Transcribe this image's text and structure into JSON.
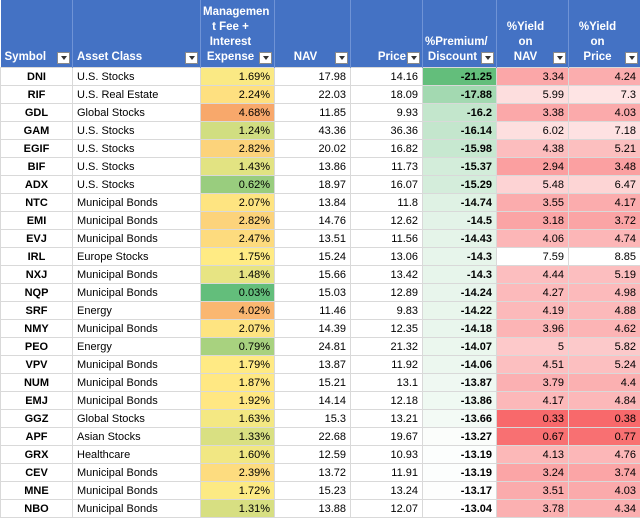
{
  "headers": [
    {
      "label": "Symbol",
      "align": "left"
    },
    {
      "label": "Asset Class",
      "align": "left"
    },
    {
      "label": "Managemen\nt Fee +\nInterest\nExpense",
      "align": "center"
    },
    {
      "label": "NAV",
      "align": "center"
    },
    {
      "label": "Price",
      "align": "right"
    },
    {
      "label": "%Premium/\nDiscount",
      "align": "center"
    },
    {
      "label": "%Yield on\nNAV",
      "align": "center"
    },
    {
      "label": "%Yield on\nPrice",
      "align": "center"
    }
  ],
  "rows": [
    [
      "DNI",
      "U.S. Stocks",
      "1.69%",
      "17.98",
      "14.16",
      "-21.25",
      "3.34",
      "4.24"
    ],
    [
      "RIF",
      "U.S. Real Estate",
      "2.24%",
      "22.03",
      "18.09",
      "-17.88",
      "5.99",
      "7.3"
    ],
    [
      "GDL",
      "Global Stocks",
      "4.68%",
      "11.85",
      "9.93",
      "-16.2",
      "3.38",
      "4.03"
    ],
    [
      "GAM",
      "U.S. Stocks",
      "1.24%",
      "43.36",
      "36.36",
      "-16.14",
      "6.02",
      "7.18"
    ],
    [
      "EGIF",
      "U.S. Stocks",
      "2.82%",
      "20.02",
      "16.82",
      "-15.98",
      "4.38",
      "5.21"
    ],
    [
      "BIF",
      "U.S. Stocks",
      "1.43%",
      "13.86",
      "11.73",
      "-15.37",
      "2.94",
      "3.48"
    ],
    [
      "ADX",
      "U.S. Stocks",
      "0.62%",
      "18.97",
      "16.07",
      "-15.29",
      "5.48",
      "6.47"
    ],
    [
      "NTC",
      "Municipal Bonds",
      "2.07%",
      "13.84",
      "11.8",
      "-14.74",
      "3.55",
      "4.17"
    ],
    [
      "EMI",
      "Municipal Bonds",
      "2.82%",
      "14.76",
      "12.62",
      "-14.5",
      "3.18",
      "3.72"
    ],
    [
      "EVJ",
      "Municipal Bonds",
      "2.47%",
      "13.51",
      "11.56",
      "-14.43",
      "4.06",
      "4.74"
    ],
    [
      "IRL",
      "Europe Stocks",
      "1.75%",
      "15.24",
      "13.06",
      "-14.3",
      "7.59",
      "8.85"
    ],
    [
      "NXJ",
      "Municipal Bonds",
      "1.48%",
      "15.66",
      "13.42",
      "-14.3",
      "4.44",
      "5.19"
    ],
    [
      "NQP",
      "Municipal Bonds",
      "0.03%",
      "15.03",
      "12.89",
      "-14.24",
      "4.27",
      "4.98"
    ],
    [
      "SRF",
      "Energy",
      "4.02%",
      "11.46",
      "9.83",
      "-14.22",
      "4.19",
      "4.88"
    ],
    [
      "NMY",
      "Municipal Bonds",
      "2.07%",
      "14.39",
      "12.35",
      "-14.18",
      "3.96",
      "4.62"
    ],
    [
      "PEO",
      "Energy",
      "0.79%",
      "24.81",
      "21.32",
      "-14.07",
      "5",
      "5.82"
    ],
    [
      "VPV",
      "Municipal Bonds",
      "1.79%",
      "13.87",
      "11.92",
      "-14.06",
      "4.51",
      "5.24"
    ],
    [
      "NUM",
      "Municipal Bonds",
      "1.87%",
      "15.21",
      "13.1",
      "-13.87",
      "3.79",
      "4.4"
    ],
    [
      "EMJ",
      "Municipal Bonds",
      "1.92%",
      "14.14",
      "12.18",
      "-13.86",
      "4.17",
      "4.84"
    ],
    [
      "GGZ",
      "Global Stocks",
      "1.63%",
      "15.3",
      "13.21",
      "-13.66",
      "0.33",
      "0.38"
    ],
    [
      "APF",
      "Asian Stocks",
      "1.33%",
      "22.68",
      "19.67",
      "-13.27",
      "0.67",
      "0.77"
    ],
    [
      "GRX",
      "Healthcare",
      "1.60%",
      "12.59",
      "10.93",
      "-13.19",
      "4.13",
      "4.76"
    ],
    [
      "CEV",
      "Municipal Bonds",
      "2.39%",
      "13.72",
      "11.91",
      "-13.19",
      "3.24",
      "3.74"
    ],
    [
      "MNE",
      "Municipal Bonds",
      "1.72%",
      "15.23",
      "13.24",
      "-13.17",
      "3.51",
      "4.03"
    ],
    [
      "NBO",
      "Municipal Bonds",
      "1.31%",
      "13.88",
      "12.07",
      "-13.04",
      "3.78",
      "4.34"
    ]
  ],
  "colors": {
    "header_bg": "#4472C4",
    "fee_low": "#63BE7B",
    "fee_mid": "#FFEB84",
    "fee_high": "#F8A86B",
    "prem_low": "#63BE7B",
    "prem_high": "#FFFFFF",
    "yield_low": "#F8696B",
    "yield_high": "#FFFFFF"
  }
}
